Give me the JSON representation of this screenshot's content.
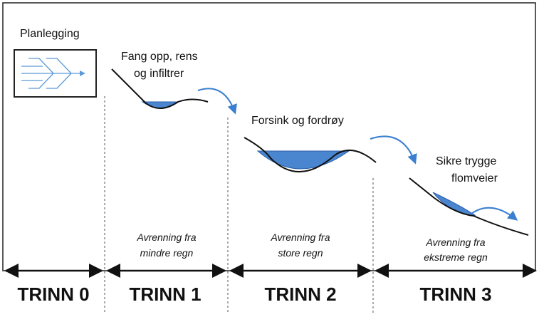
{
  "stages": [
    {
      "label": "TRINN 0",
      "action": [
        "Planlegging"
      ]
    },
    {
      "label": "TRINN 1",
      "action": [
        "Fang opp, rens",
        "og infiltrer"
      ],
      "runoff": [
        "Avrenning fra",
        "mindre regn"
      ]
    },
    {
      "label": "TRINN 2",
      "action": [
        "Forsink og fordrøy"
      ],
      "runoff": [
        "Avrenning fra",
        "store regn"
      ]
    },
    {
      "label": "TRINN 3",
      "action": [
        "Sikre trygge",
        "flomveier"
      ],
      "runoff": [
        "Avrenning fra",
        "ekstreme regn"
      ]
    }
  ]
}
